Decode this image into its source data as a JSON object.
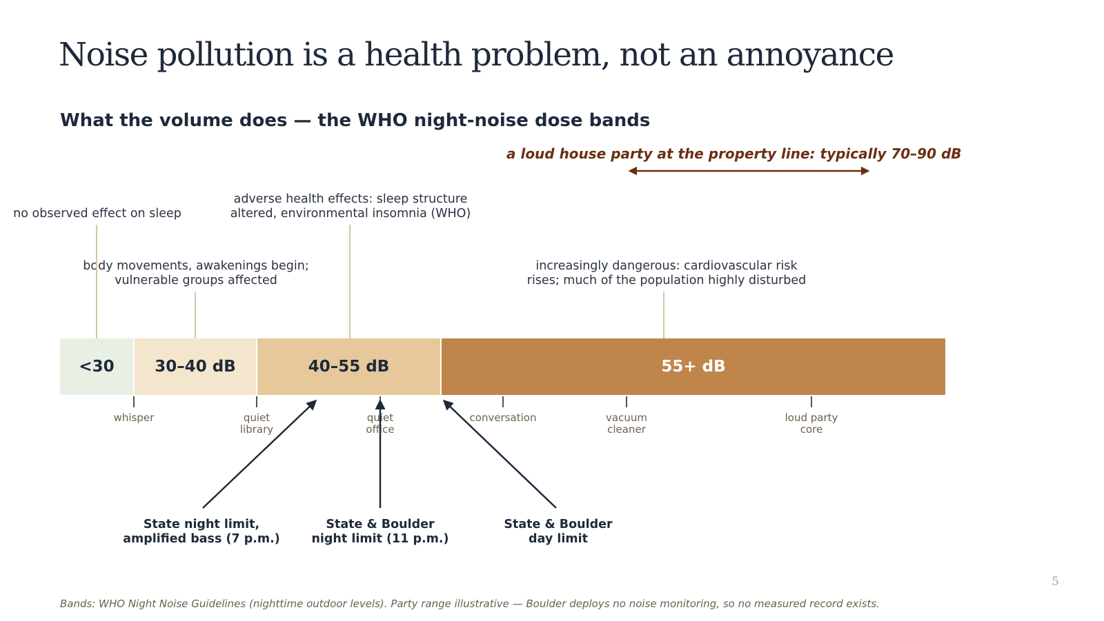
{
  "slide": {
    "title": "Noise pollution is a health problem, not an annoyance",
    "subtitle": "What the volume does — the WHO night-noise dose bands",
    "page_number": "5",
    "footnote": "Bands: WHO Night Noise Guidelines (nighttime outdoor levels). Party range illustrative — Boulder deploys no noise monitoring, so no measured record exists."
  },
  "party_range": {
    "label": "a loud house party at the property line: typically 70–90 dB",
    "from_db": 70,
    "to_db": 90,
    "color": "#6b2f12"
  },
  "bands": [
    {
      "label": "<30",
      "from_db": 25,
      "to_db": 30,
      "color": "#e8f0e4",
      "text_color": "#1e2a3a"
    },
    {
      "label": "30–40 dB",
      "from_db": 30,
      "to_db": 40,
      "color": "#f3e6cc",
      "text_color": "#1e2a3a"
    },
    {
      "label": "40–55 dB",
      "from_db": 40,
      "to_db": 55,
      "color": "#e6c89a",
      "text_color": "#1e2a3a"
    },
    {
      "label": "55+ dB",
      "from_db": 55,
      "to_db": 97,
      "color": "#c0854b",
      "text_color": "#ffffff"
    }
  ],
  "effects": {
    "lt30": "no observed effect on sleep",
    "b30_40": [
      "body movements, awakenings begin;",
      "vulnerable groups affected"
    ],
    "b40_55": [
      "adverse health effects: sleep structure",
      "altered, environmental insomnia (WHO)"
    ],
    "b55": [
      "increasingly dangerous: cardiovascular risk",
      "rises; much of the population highly disturbed"
    ]
  },
  "references": [
    {
      "lines": [
        "whisper"
      ],
      "db": 30
    },
    {
      "lines": [
        "quiet",
        "library"
      ],
      "db": 40
    },
    {
      "lines": [
        "quiet",
        "office"
      ],
      "db": 50
    },
    {
      "lines": [
        "conversation"
      ],
      "db": 60
    },
    {
      "lines": [
        "vacuum",
        "cleaner"
      ],
      "db": 70
    },
    {
      "lines": [
        "loud party",
        "core"
      ],
      "db": 85
    }
  ],
  "limits": [
    {
      "lines": [
        "State night limit,",
        "amplified bass (7 p.m.)"
      ],
      "db": 45
    },
    {
      "lines": [
        "State & Boulder",
        "night limit (11 p.m.)"
      ],
      "db": 50
    },
    {
      "lines": [
        "State & Boulder",
        "day limit"
      ],
      "db": 55
    }
  ]
}
